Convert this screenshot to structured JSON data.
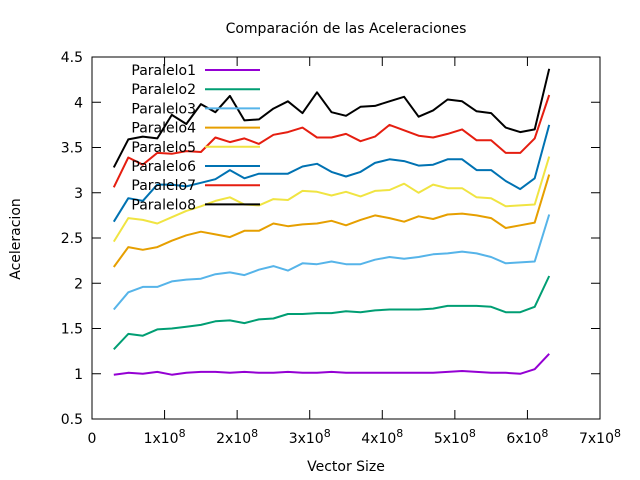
{
  "chart_data": {
    "type": "line",
    "title": "Comparación de las Aceleraciones",
    "xlabel": "Vector Size",
    "ylabel": "Aceleracion",
    "xlim": [
      0,
      700000000
    ],
    "ylim": [
      0.5,
      4.5
    ],
    "grid": false,
    "legend_position": "top-left",
    "x_ticks": [
      {
        "value": 0,
        "label": "0"
      },
      {
        "value": 100000000,
        "label": "1x10^8"
      },
      {
        "value": 200000000,
        "label": "2x10^8"
      },
      {
        "value": 300000000,
        "label": "3x10^8"
      },
      {
        "value": 400000000,
        "label": "4x10^8"
      },
      {
        "value": 500000000,
        "label": "5x10^8"
      },
      {
        "value": 600000000,
        "label": "6x10^8"
      },
      {
        "value": 700000000,
        "label": "7x10^8"
      }
    ],
    "y_ticks": [
      {
        "value": 0.5,
        "label": "0.5"
      },
      {
        "value": 1,
        "label": "1"
      },
      {
        "value": 1.5,
        "label": "1.5"
      },
      {
        "value": 2,
        "label": "2"
      },
      {
        "value": 2.5,
        "label": "2.5"
      },
      {
        "value": 3,
        "label": "3"
      },
      {
        "value": 3.5,
        "label": "3.5"
      },
      {
        "value": 4,
        "label": "4"
      },
      {
        "value": 4.5,
        "label": "4.5"
      }
    ],
    "x": [
      30000000,
      50000000,
      70000000,
      90000000,
      110000000,
      130000000,
      150000000,
      170000000,
      190000000,
      210000000,
      230000000,
      250000000,
      270000000,
      290000000,
      310000000,
      330000000,
      350000000,
      370000000,
      390000000,
      410000000,
      430000000,
      450000000,
      470000000,
      490000000,
      510000000,
      530000000,
      550000000,
      570000000,
      590000000,
      610000000,
      630000000
    ],
    "series": [
      {
        "name": "Paralelo1",
        "color": "#9400d3",
        "values": [
          0.99,
          1.01,
          1.0,
          1.02,
          0.99,
          1.01,
          1.02,
          1.02,
          1.01,
          1.02,
          1.01,
          1.01,
          1.02,
          1.01,
          1.01,
          1.02,
          1.01,
          1.01,
          1.01,
          1.01,
          1.01,
          1.01,
          1.01,
          1.02,
          1.03,
          1.02,
          1.01,
          1.01,
          1.0,
          1.05,
          1.22
        ]
      },
      {
        "name": "Paralelo2",
        "color": "#009e73",
        "values": [
          1.27,
          1.44,
          1.42,
          1.49,
          1.5,
          1.52,
          1.54,
          1.58,
          1.59,
          1.56,
          1.6,
          1.61,
          1.66,
          1.66,
          1.67,
          1.67,
          1.69,
          1.68,
          1.7,
          1.71,
          1.71,
          1.71,
          1.72,
          1.75,
          1.75,
          1.75,
          1.74,
          1.68,
          1.68,
          1.74,
          2.08
        ]
      },
      {
        "name": "Paralelo3",
        "color": "#56b4e9",
        "values": [
          1.71,
          1.9,
          1.96,
          1.96,
          2.02,
          2.04,
          2.05,
          2.1,
          2.12,
          2.09,
          2.15,
          2.19,
          2.14,
          2.22,
          2.21,
          2.24,
          2.21,
          2.21,
          2.26,
          2.29,
          2.27,
          2.29,
          2.32,
          2.33,
          2.35,
          2.33,
          2.29,
          2.22,
          2.23,
          2.24,
          2.76
        ]
      },
      {
        "name": "Paralelo4",
        "color": "#e69f00",
        "values": [
          2.18,
          2.4,
          2.37,
          2.4,
          2.47,
          2.53,
          2.57,
          2.54,
          2.51,
          2.58,
          2.58,
          2.66,
          2.63,
          2.65,
          2.66,
          2.69,
          2.64,
          2.7,
          2.75,
          2.72,
          2.68,
          2.74,
          2.71,
          2.76,
          2.77,
          2.75,
          2.72,
          2.61,
          2.64,
          2.67,
          3.2
        ]
      },
      {
        "name": "Paralelo5",
        "color": "#f0e442",
        "values": [
          2.46,
          2.72,
          2.7,
          2.66,
          2.73,
          2.8,
          2.85,
          2.91,
          2.95,
          2.87,
          2.86,
          2.93,
          2.92,
          3.02,
          3.01,
          2.97,
          3.01,
          2.96,
          3.02,
          3.03,
          3.1,
          3.0,
          3.09,
          3.05,
          3.05,
          2.95,
          2.94,
          2.85,
          2.86,
          2.87,
          3.4
        ]
      },
      {
        "name": "Paralelo6",
        "color": "#0072b2",
        "values": [
          2.68,
          2.94,
          2.91,
          3.09,
          3.09,
          3.07,
          3.11,
          3.15,
          3.25,
          3.16,
          3.21,
          3.21,
          3.21,
          3.29,
          3.32,
          3.23,
          3.18,
          3.23,
          3.33,
          3.37,
          3.35,
          3.3,
          3.31,
          3.37,
          3.37,
          3.25,
          3.25,
          3.13,
          3.04,
          3.16,
          3.75
        ]
      },
      {
        "name": "Paralelo7",
        "color": "#e51e10",
        "values": [
          3.06,
          3.39,
          3.31,
          3.44,
          3.43,
          3.46,
          3.45,
          3.61,
          3.56,
          3.6,
          3.54,
          3.64,
          3.67,
          3.72,
          3.61,
          3.61,
          3.65,
          3.57,
          3.62,
          3.75,
          3.69,
          3.63,
          3.61,
          3.65,
          3.7,
          3.58,
          3.58,
          3.44,
          3.44,
          3.6,
          4.08
        ]
      },
      {
        "name": "Paralelo8",
        "color": "#000000",
        "values": [
          3.28,
          3.59,
          3.62,
          3.6,
          3.86,
          3.76,
          3.98,
          3.89,
          4.07,
          3.8,
          3.81,
          3.93,
          4.01,
          3.88,
          4.11,
          3.89,
          3.85,
          3.95,
          3.96,
          4.01,
          4.06,
          3.84,
          3.91,
          4.03,
          4.01,
          3.9,
          3.88,
          3.72,
          3.67,
          3.7,
          4.37
        ]
      }
    ]
  }
}
